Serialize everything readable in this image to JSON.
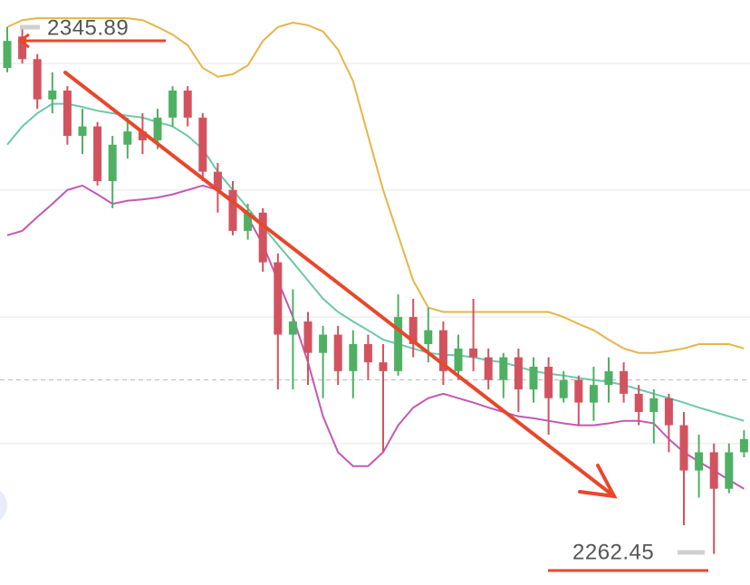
{
  "chart_data": {
    "type": "candlestick",
    "ylim": [
      2257.5,
      2350.5
    ],
    "gridlines": [
      2340.4,
      2320.3,
      2300.1,
      2280.0
    ],
    "ref_line": 2290.1,
    "up_color": "#4fb063",
    "down_color": "#d2535f",
    "open": [
      2339.7,
      2344.7,
      2341.1,
      2334.7,
      2336.1,
      2328.9,
      2330.4,
      2321.7,
      2327.5,
      2329.6,
      2328.2,
      2331.8,
      2336.1,
      2331.8,
      2323.2,
      2320.3,
      2313.8,
      2316.7,
      2308.8,
      2297.3,
      2299.4,
      2294.4,
      2297.3,
      2291.5,
      2295.8,
      2292.9,
      2291.5,
      2300.1,
      2295.8,
      2298.0,
      2291.5,
      2295.1,
      2293.7,
      2290.1,
      2293.7,
      2288.6,
      2292.2,
      2287.2,
      2290.1,
      2286.5,
      2289.3,
      2291.5,
      2287.9,
      2285.0,
      2287.2,
      2282.9,
      2275.7,
      2278.6,
      2272.8,
      2278.6
    ],
    "close": [
      2344.0,
      2341.1,
      2334.7,
      2336.1,
      2328.9,
      2330.4,
      2321.7,
      2327.5,
      2329.6,
      2328.2,
      2331.8,
      2336.1,
      2331.8,
      2323.2,
      2320.3,
      2313.8,
      2316.7,
      2308.8,
      2297.3,
      2299.4,
      2294.4,
      2297.3,
      2291.5,
      2295.8,
      2292.9,
      2291.5,
      2300.1,
      2295.8,
      2298.0,
      2291.5,
      2295.1,
      2293.7,
      2290.1,
      2293.7,
      2288.6,
      2292.2,
      2287.2,
      2290.1,
      2286.5,
      2289.3,
      2291.5,
      2287.9,
      2285.0,
      2287.2,
      2282.9,
      2275.7,
      2278.6,
      2272.8,
      2278.6,
      2280.7
    ],
    "high": [
      2346.2,
      2345.89,
      2341.9,
      2339.0,
      2336.8,
      2333.2,
      2331.1,
      2328.9,
      2331.8,
      2332.5,
      2333.2,
      2336.8,
      2336.8,
      2332.5,
      2324.6,
      2321.7,
      2318.1,
      2317.4,
      2310.2,
      2304.5,
      2300.9,
      2298.7,
      2298.7,
      2298.0,
      2297.3,
      2295.8,
      2303.7,
      2303.0,
      2301.6,
      2299.4,
      2297.3,
      2303.0,
      2295.1,
      2294.4,
      2295.1,
      2293.7,
      2293.7,
      2291.5,
      2290.8,
      2292.2,
      2293.7,
      2292.9,
      2289.3,
      2288.6,
      2287.9,
      2285.0,
      2281.4,
      2280.0,
      2280.0,
      2282.1
    ],
    "low": [
      2339.0,
      2340.4,
      2333.2,
      2332.5,
      2327.5,
      2326.0,
      2321.0,
      2317.4,
      2325.3,
      2326.0,
      2326.8,
      2330.4,
      2330.4,
      2321.7,
      2316.7,
      2313.1,
      2312.4,
      2307.3,
      2288.6,
      2288.6,
      2289.3,
      2287.2,
      2289.3,
      2287.2,
      2290.1,
      2278.6,
      2290.8,
      2293.7,
      2292.9,
      2289.3,
      2290.1,
      2291.5,
      2288.6,
      2287.2,
      2285.0,
      2286.5,
      2281.4,
      2286.5,
      2282.9,
      2283.6,
      2286.5,
      2286.5,
      2282.9,
      2280.0,
      2278.6,
      2267.0,
      2271.4,
      2262.45,
      2272.1,
      2277.8
    ],
    "lines": [
      {
        "color": "#e6b54a",
        "values": [
          2346.2,
          2347.3,
          2347.6,
          2347.6,
          2347.6,
          2347.6,
          2347.6,
          2347.6,
          2347.6,
          2347.3,
          2346.2,
          2345.0,
          2343.3,
          2339.7,
          2338.3,
          2338.7,
          2340.1,
          2344.0,
          2346.2,
          2346.9,
          2346.5,
          2345.5,
          2342.6,
          2337.6,
          2328.9,
          2320.3,
          2313.1,
          2305.9,
          2301.6,
          2300.9,
          2300.9,
          2300.9,
          2300.9,
          2300.9,
          2300.9,
          2300.9,
          2300.9,
          2300.1,
          2299.0,
          2298.0,
          2296.5,
          2295.1,
          2294.4,
          2294.4,
          2294.7,
          2295.1,
          2295.8,
          2295.8,
          2295.8,
          2295.1
        ]
      },
      {
        "color": "#6cc9a8",
        "values": [
          2327.5,
          2330.4,
          2332.5,
          2334.0,
          2334.0,
          2333.5,
          2332.9,
          2332.5,
          2332.1,
          2331.8,
          2331.1,
          2330.4,
          2328.9,
          2326.8,
          2323.2,
          2320.3,
          2317.4,
          2314.5,
          2311.6,
          2308.8,
          2305.9,
          2303.0,
          2300.9,
          2299.4,
          2298.0,
          2296.5,
          2295.8,
          2295.1,
          2294.4,
          2294.1,
          2294.0,
          2293.7,
          2293.2,
          2292.9,
          2292.2,
          2291.5,
          2291.1,
          2290.8,
          2290.4,
          2290.1,
          2289.8,
          2289.3,
          2288.6,
          2287.9,
          2287.2,
          2286.5,
          2285.7,
          2285.0,
          2284.3,
          2283.6
        ]
      },
      {
        "color": "#c458b4",
        "values": [
          2313.1,
          2313.8,
          2316.0,
          2318.1,
          2320.3,
          2321.0,
          2319.6,
          2318.1,
          2318.6,
          2318.8,
          2319.1,
          2319.6,
          2320.3,
          2321.0,
          2320.3,
          2318.8,
          2316.0,
          2311.6,
          2305.9,
          2300.1,
          2292.9,
          2284.3,
          2278.6,
          2276.4,
          2276.4,
          2278.6,
          2282.9,
          2285.7,
          2287.2,
          2287.9,
          2287.2,
          2286.5,
          2285.7,
          2285.0,
          2284.3,
          2284.0,
          2283.6,
          2283.2,
          2282.9,
          2282.9,
          2283.2,
          2283.6,
          2283.6,
          2283.2,
          2280.7,
          2278.6,
          2277.1,
          2275.7,
          2274.2,
          2272.8
        ]
      }
    ],
    "annotations": [
      "2345.89",
      "2262.45"
    ]
  }
}
